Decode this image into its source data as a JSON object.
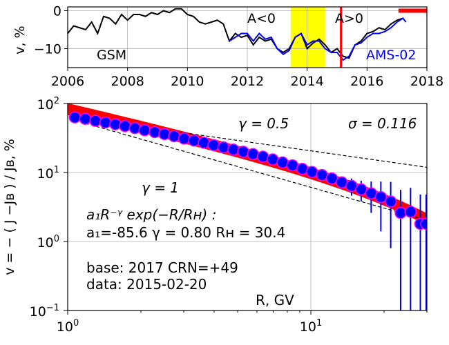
{
  "chart_data": [
    {
      "type": "line",
      "panel": "top",
      "ylabel": "v, %",
      "xlim": [
        2006,
        2018
      ],
      "ylim": [
        -15,
        1
      ],
      "grid": true,
      "xticks": [
        "2006",
        "2008",
        "2010",
        "2012",
        "2014",
        "2016",
        "2018"
      ],
      "yticks": [
        "0",
        "−10"
      ],
      "labels": {
        "gsm": "GSM",
        "ams": "AMS-02",
        "aneg": "A<0",
        "apos": "A>0"
      },
      "colors": {
        "gsm": "#000000",
        "ams": "#0000ff",
        "band": "#ffff00",
        "marker": "#ff0000"
      },
      "highlight_band": [
        2013.45,
        2014.6
      ],
      "reversal_line": 2015.13,
      "series": [
        {
          "name": "GSM",
          "x": [
            2006.0,
            2006.2,
            2006.4,
            2006.6,
            2006.8,
            2007.0,
            2007.2,
            2007.4,
            2007.6,
            2007.8,
            2008.0,
            2008.2,
            2008.4,
            2008.6,
            2008.8,
            2009.0,
            2009.2,
            2009.4,
            2009.6,
            2009.8,
            2010.0,
            2010.2,
            2010.4,
            2010.6,
            2010.8,
            2011.0,
            2011.2,
            2011.4,
            2011.6,
            2011.8,
            2012.0,
            2012.2,
            2012.4,
            2012.6,
            2012.8,
            2013.0,
            2013.2,
            2013.4,
            2013.6,
            2013.8,
            2014.0,
            2014.2,
            2014.4,
            2014.6,
            2014.8,
            2015.0,
            2015.2,
            2015.4,
            2015.6,
            2015.8,
            2016.0,
            2016.2,
            2016.4,
            2016.6,
            2016.8,
            2017.0,
            2017.2
          ],
          "values": [
            -6,
            -4,
            -4.5,
            -5,
            -3,
            -6,
            -1.5,
            -2,
            -3.5,
            -1,
            -2.5,
            -1,
            -1,
            -1.5,
            -0.5,
            -1,
            0,
            -0.5,
            0.5,
            0.5,
            -1,
            -1.5,
            -3,
            -3.5,
            -3,
            -2.5,
            -3.5,
            -8,
            -6,
            -7,
            -6.5,
            -9,
            -7,
            -8,
            -7.5,
            -10,
            -11,
            -10,
            -7,
            -6,
            -10,
            -8.5,
            -7.5,
            -9,
            -11,
            -10,
            -12,
            -12.5,
            -9,
            -8,
            -6,
            -5.5,
            -4.5,
            -5,
            -3.5,
            -2.5,
            -2
          ]
        },
        {
          "name": "AMS-02",
          "x": [
            2011.4,
            2011.6,
            2011.8,
            2012.0,
            2012.2,
            2012.4,
            2012.6,
            2012.8,
            2013.0,
            2013.2,
            2013.4,
            2013.6,
            2013.8,
            2014.0,
            2014.2,
            2014.4,
            2014.6,
            2014.8,
            2015.0,
            2015.2,
            2015.4,
            2015.6,
            2015.8,
            2016.0,
            2016.2,
            2016.4,
            2016.6,
            2016.8,
            2017.0,
            2017.2,
            2017.3
          ],
          "values": [
            -8,
            -7,
            -6,
            -6,
            -8,
            -6,
            -7.5,
            -7,
            -10,
            -11.5,
            -10.5,
            -7,
            -6,
            -9,
            -8,
            -8,
            -10,
            -11,
            -11,
            -13,
            -12,
            -9,
            -8.5,
            -7,
            -6,
            -6,
            -5.5,
            -4.5,
            -3,
            -2,
            -3
          ]
        }
      ],
      "marker_segment": [
        2017.05,
        2018.0
      ],
      "marker_value": 0
    },
    {
      "type": "scatter",
      "panel": "bottom",
      "xlabel": "R, GV",
      "ylabel": "v = − ( J −Jʙ ) / Jʙ, %",
      "xscale": "log",
      "yscale": "log",
      "xlim": [
        1.0,
        30.0
      ],
      "ylim": [
        0.1,
        100
      ],
      "grid": true,
      "x_tick_values": [
        1,
        10
      ],
      "y_tick_values": [
        0.1,
        1,
        10,
        100
      ],
      "colors": {
        "point_fill": "#0000ff",
        "point_edge": "#ff00ff",
        "errorbar": "#0000cc",
        "fit_band": "#ff0000",
        "ref_line": "#000000"
      },
      "points": {
        "x": [
          1.07,
          1.18,
          1.3,
          1.43,
          1.57,
          1.72,
          1.89,
          2.07,
          2.28,
          2.5,
          2.74,
          3.01,
          3.31,
          3.63,
          3.98,
          4.37,
          4.8,
          5.27,
          5.78,
          6.35,
          6.97,
          7.65,
          8.4,
          9.22,
          10.1,
          11.1,
          12.2,
          13.4,
          14.7,
          16.1,
          17.7,
          19.4,
          21.3,
          23.4,
          25.7,
          28.2,
          29.8
        ],
        "y": [
          63,
          60,
          56,
          53,
          50,
          47,
          44,
          41,
          38.5,
          36,
          33.5,
          31,
          29,
          27,
          25,
          23.2,
          21.5,
          20,
          18.5,
          17,
          15.5,
          14,
          12.7,
          11.3,
          10.2,
          9.2,
          8.2,
          7.2,
          6.4,
          5.7,
          5.0,
          4.4,
          3.8,
          2.6,
          2.7,
          1.8,
          1.8
        ],
        "err_low": [
          0,
          0,
          0,
          0,
          0,
          0,
          0,
          0,
          0,
          0,
          0,
          0,
          0,
          0,
          0,
          0,
          0,
          0,
          0,
          0,
          0,
          0,
          0,
          0.5,
          0.6,
          0.8,
          1.0,
          1.4,
          1.8,
          1.9,
          2.4,
          3.0,
          3.0,
          2.5,
          2.6,
          1.79,
          1.79
        ],
        "err_high": [
          0,
          0,
          0,
          0,
          0,
          0,
          0,
          0,
          0,
          0,
          0,
          0,
          0,
          0,
          0,
          0,
          0,
          0,
          0,
          0,
          0,
          0,
          0,
          0.5,
          0.6,
          0.8,
          1.0,
          1.4,
          1.8,
          1.9,
          2.4,
          3.0,
          3.5,
          3.0,
          3.3,
          3.0,
          3.0
        ]
      },
      "fit": {
        "a1": -85.6,
        "gamma": 0.8,
        "RH": 30.4,
        "sigma": 0.116,
        "band_halfwidth_factor": 1.16
      },
      "reference_lines": [
        {
          "gamma": 0.5,
          "anchor": 63
        },
        {
          "gamma": 1,
          "anchor": 57
        }
      ],
      "annotations": {
        "gamma_half": "γ = 0.5",
        "sigma": "σ = 0.116",
        "gamma_one": "γ = 1",
        "formula_line1": "a₁R⁻ᵞ exp(−R/Rʜ) :",
        "formula_line2": "a₁=-85.6  γ = 0.80  Rʜ = 30.4",
        "base": "base: 2017   CRN=+49",
        "data": "data: 2015-02-20"
      }
    }
  ]
}
